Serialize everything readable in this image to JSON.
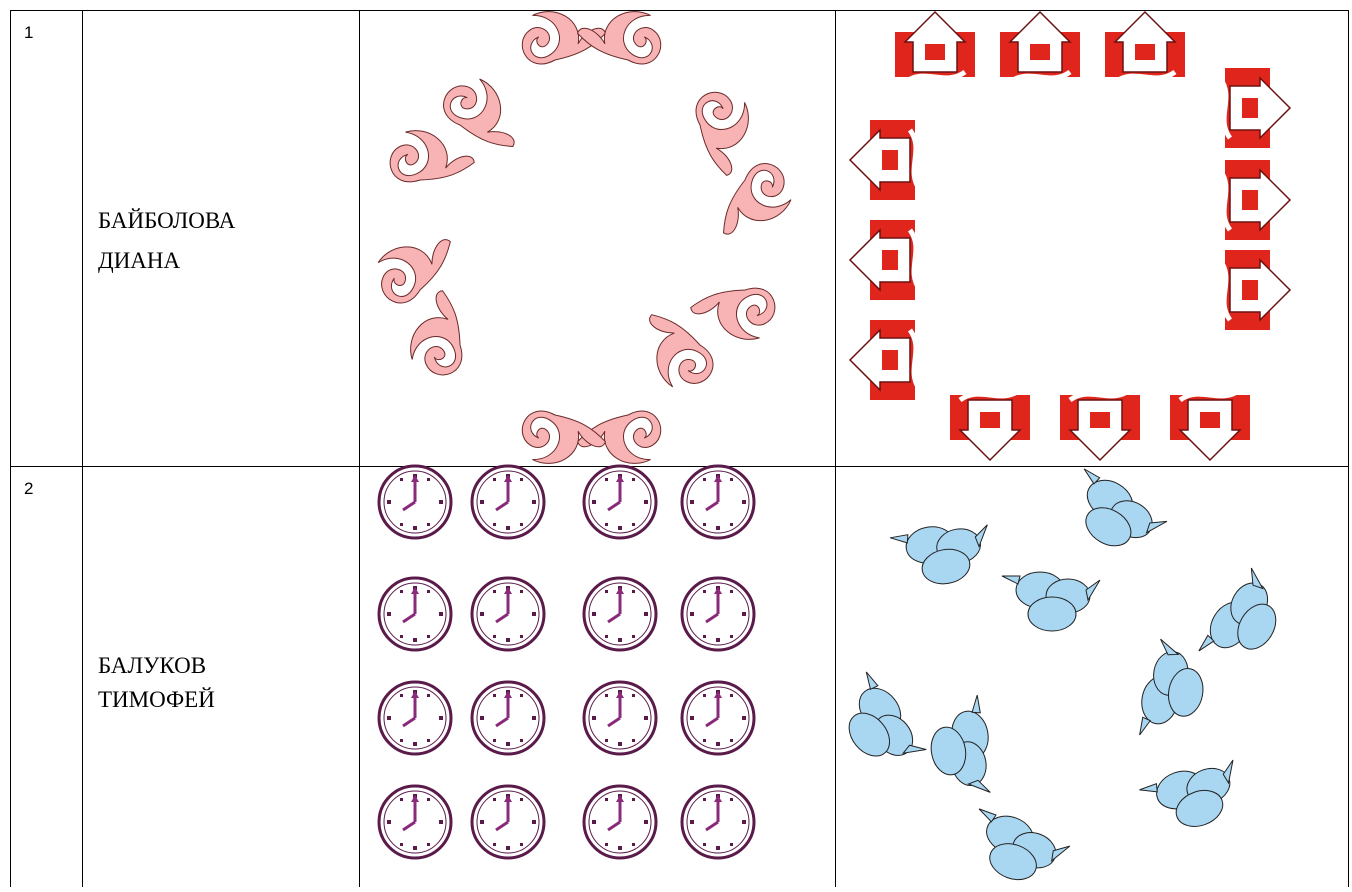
{
  "table": {
    "rows": [
      {
        "number": "1",
        "name": [
          "БАЙБОЛОВА",
          "ДИАНА"
        ]
      },
      {
        "number": "2",
        "name": [
          "БАЛУКОВ",
          "ТИМОФЕЙ"
        ]
      }
    ]
  }
}
